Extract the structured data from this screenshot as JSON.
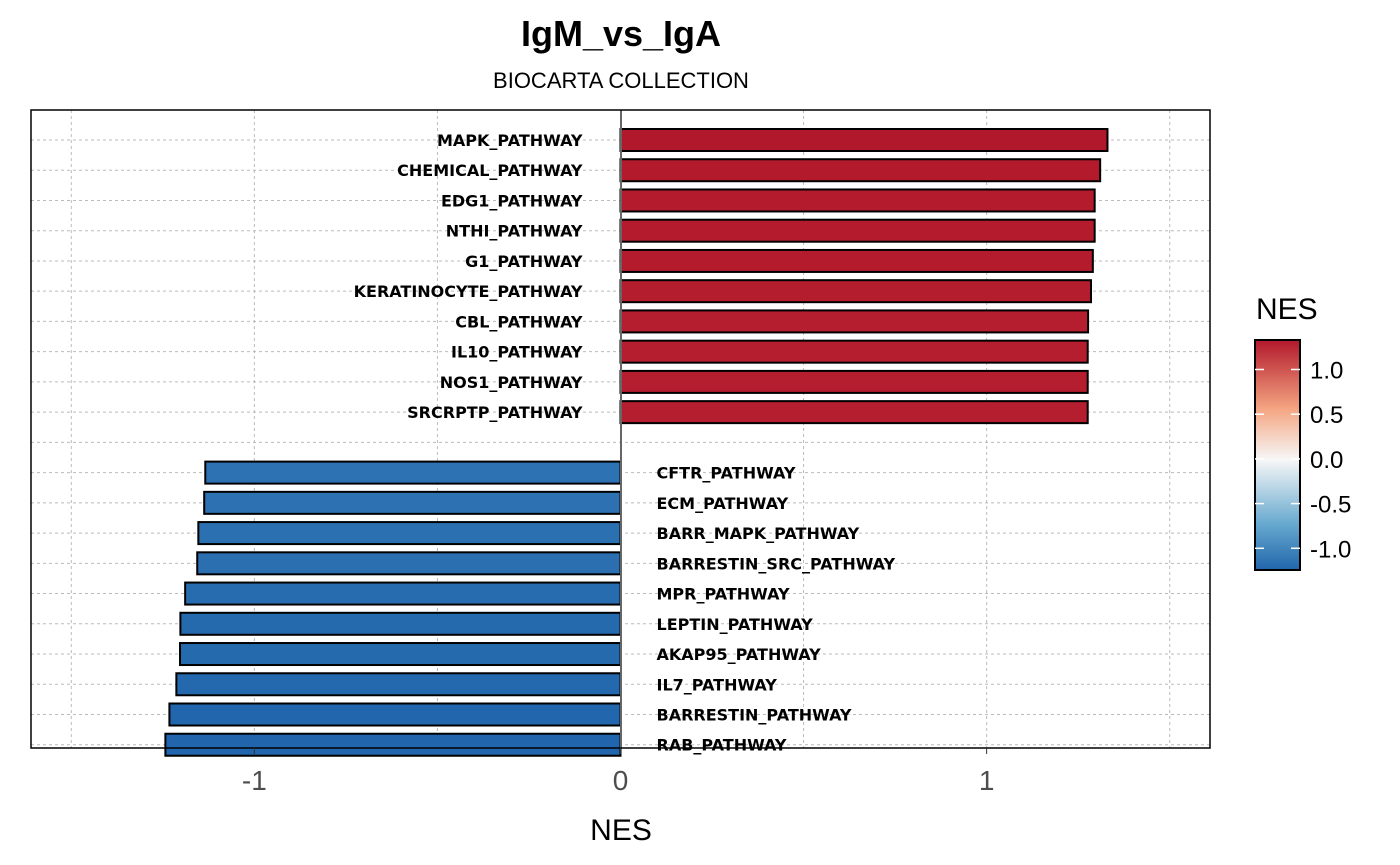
{
  "chart_data": {
    "type": "bar",
    "orientation": "horizontal",
    "title": "IgM_vs_IgA",
    "subtitle": "BIOCARTA COLLECTION",
    "xlabel": "NES",
    "ylabel": "",
    "xlim": [
      -1.61,
      1.61
    ],
    "xticks": [
      "-1",
      "0",
      "1"
    ],
    "grid": true,
    "categories": [
      "MAPK_PATHWAY",
      "CHEMICAL_PATHWAY",
      "EDG1_PATHWAY",
      "NTHI_PATHWAY",
      "G1_PATHWAY",
      "KERATINOCYTE_PATHWAY",
      "CBL_PATHWAY",
      "IL10_PATHWAY",
      "NOS1_PATHWAY",
      "SRCRPTP_PATHWAY",
      "CFTR_PATHWAY",
      "ECM_PATHWAY",
      "BARR_MAPK_PATHWAY",
      "BARRESTIN_SRC_PATHWAY",
      "MPR_PATHWAY",
      "LEPTIN_PATHWAY",
      "AKAP95_PATHWAY",
      "IL7_PATHWAY",
      "BARRESTIN_PATHWAY",
      "RAB_PATHWAY"
    ],
    "values": [
      1.33,
      1.31,
      1.295,
      1.295,
      1.29,
      1.285,
      1.277,
      1.276,
      1.276,
      1.276,
      -1.134,
      -1.137,
      -1.153,
      -1.156,
      -1.189,
      -1.202,
      -1.203,
      -1.213,
      -1.232,
      -1.243
    ],
    "legend": {
      "title": "NES",
      "position": "right",
      "type": "colorbar",
      "ticks": [
        "1.0",
        "0.5",
        "0.0",
        "-0.5",
        "-1.0"
      ],
      "range": [
        -1.243,
        1.33
      ],
      "colors": {
        "low": "#2166AC",
        "mid": "#F7F7F7",
        "high": "#B2182B"
      }
    }
  }
}
